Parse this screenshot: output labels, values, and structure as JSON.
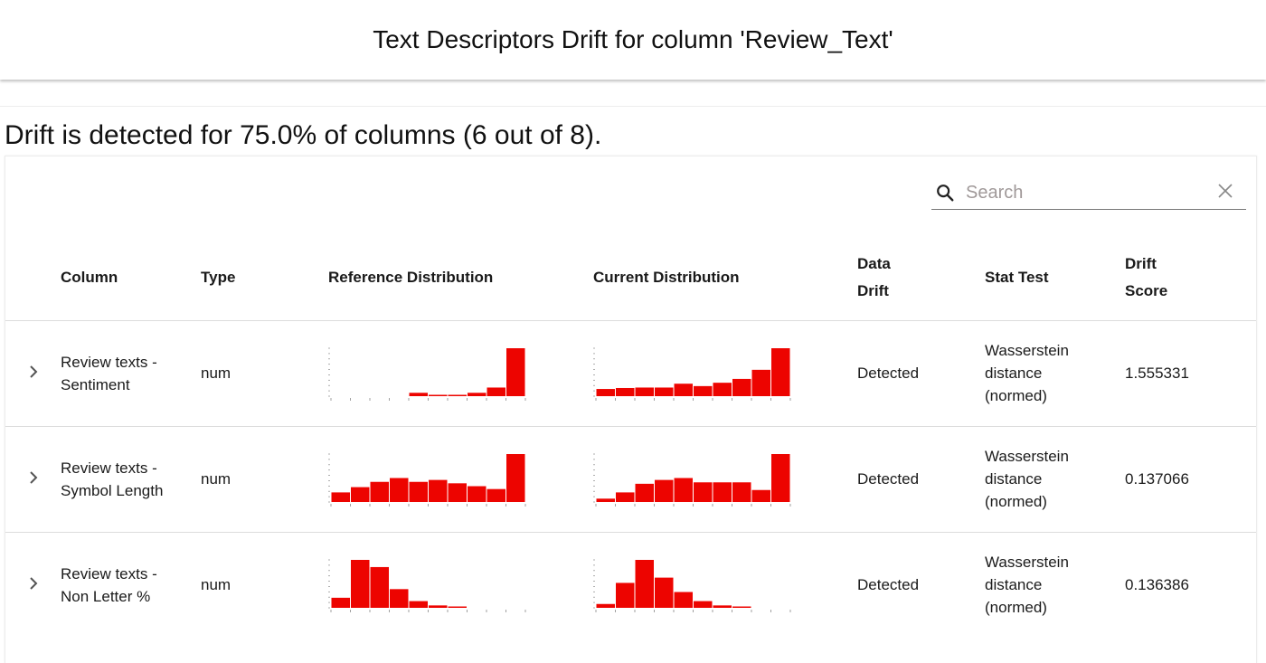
{
  "header": {
    "title": "Text Descriptors Drift for column 'Review_Text'"
  },
  "summary": "Drift is detected for 75.0% of columns (6 out of 8).",
  "search": {
    "placeholder": "Search",
    "value": ""
  },
  "columns": {
    "column": "Column",
    "type": "Type",
    "reference": "Reference Distribution",
    "current": "Current Distribution",
    "data_drift": "Data Drift",
    "stat_test": "Stat Test",
    "drift_score": "Drift Score"
  },
  "colors": {
    "bar": "#ed0400",
    "row_border": "#dcdcdc"
  },
  "rows": [
    {
      "column": "Review texts - Sentiment",
      "type": "num",
      "data_drift": "Detected",
      "stat_test": "Wasserstein distance (normed)",
      "drift_score": "1.555331",
      "reference_bins": [
        0,
        0,
        0,
        0,
        0.07,
        0.02,
        0.02,
        0.07,
        0.18,
        1.0
      ],
      "current_bins": [
        0.15,
        0.17,
        0.18,
        0.18,
        0.26,
        0.21,
        0.28,
        0.36,
        0.55,
        1.0
      ]
    },
    {
      "column": "Review texts - Symbol Length",
      "type": "num",
      "data_drift": "Detected",
      "stat_test": "Wasserstein distance (normed)",
      "drift_score": "0.137066",
      "reference_bins": [
        0.2,
        0.31,
        0.42,
        0.5,
        0.42,
        0.46,
        0.39,
        0.33,
        0.27,
        1.0
      ],
      "current_bins": [
        0.07,
        0.2,
        0.38,
        0.46,
        0.5,
        0.41,
        0.41,
        0.41,
        0.25,
        1.0
      ]
    },
    {
      "column": "Review texts - Non Letter %",
      "type": "num",
      "data_drift": "Detected",
      "stat_test": "Wasserstein distance (normed)",
      "drift_score": "0.136386",
      "reference_bins": [
        0.21,
        1.0,
        0.85,
        0.39,
        0.14,
        0.05,
        0.02,
        0,
        0,
        0
      ],
      "current_bins": [
        0.08,
        0.52,
        1.0,
        0.63,
        0.33,
        0.14,
        0.05,
        0.02,
        0,
        0
      ]
    }
  ]
}
